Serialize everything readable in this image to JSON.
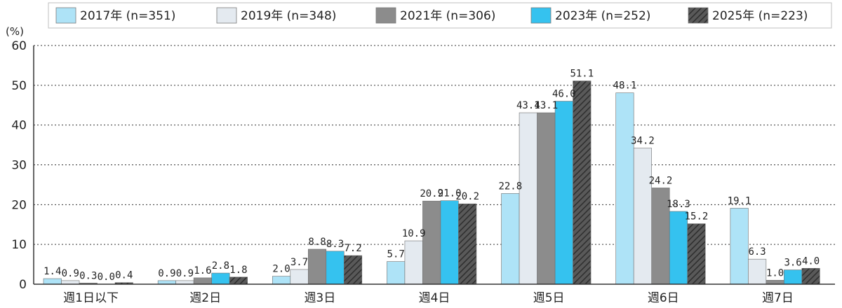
{
  "chart_data": {
    "type": "bar",
    "unit_label": "(%)",
    "ylim": [
      0,
      60
    ],
    "yticks": [
      0,
      10,
      20,
      30,
      40,
      50,
      60
    ],
    "grid": true,
    "legend_position": "top",
    "categories": [
      "週1日以下",
      "週2日",
      "週3日",
      "週4日",
      "週5日",
      "週6日",
      "週7日"
    ],
    "series": [
      {
        "name": "2017年 (n=351)",
        "color": "#aee3f7",
        "pattern": "solid",
        "values": [
          1.4,
          0.9,
          2.0,
          5.7,
          22.8,
          48.1,
          19.1
        ]
      },
      {
        "name": "2019年 (n=348)",
        "color": "#e4eaf0",
        "pattern": "solid",
        "values": [
          0.9,
          0.9,
          3.7,
          10.9,
          43.1,
          34.2,
          6.3
        ]
      },
      {
        "name": "2021年 (n=306)",
        "color": "#8c8c8c",
        "pattern": "solid",
        "values": [
          0.3,
          1.6,
          8.8,
          20.9,
          43.1,
          24.2,
          1.0
        ]
      },
      {
        "name": "2023年 (n=252)",
        "color": "#35c2ef",
        "pattern": "solid",
        "values": [
          0.0,
          2.8,
          8.3,
          21.0,
          46.0,
          18.3,
          3.6
        ]
      },
      {
        "name": "2025年 (n=223)",
        "color": "#555555",
        "pattern": "hatch",
        "values": [
          0.4,
          1.8,
          7.2,
          20.2,
          51.1,
          15.2,
          4.0
        ]
      }
    ]
  }
}
